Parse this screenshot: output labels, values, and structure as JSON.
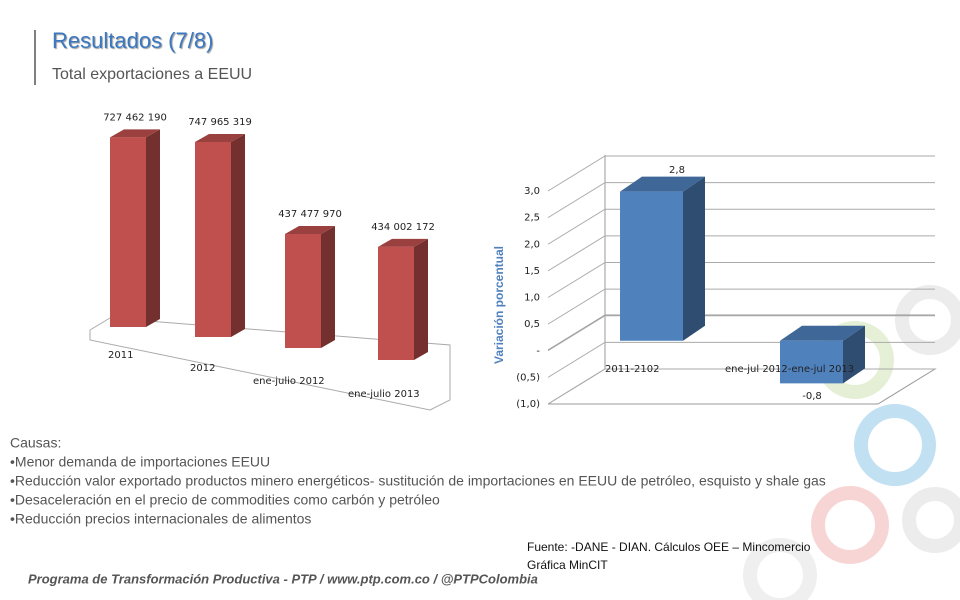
{
  "header": {
    "title": "Resultados (7/8)",
    "subtitle": "Total exportaciones a EEUU"
  },
  "chart_data": [
    {
      "type": "bar3d",
      "categories": [
        "2011",
        "2012",
        "ene-julio 2012",
        "ene-julio 2013"
      ],
      "values": [
        727462190,
        747965319,
        437477970,
        434002172
      ],
      "value_labels": [
        "727 462 190",
        "747 965 319",
        "437 477 970",
        "434 002 172"
      ],
      "color": "#c0504d"
    },
    {
      "type": "bar3d_axis",
      "y_label": "Variación porcentual",
      "categories": [
        "2011-2102",
        "ene-jul 2012-ene-jul 2013"
      ],
      "values": [
        2.8,
        -0.8
      ],
      "value_labels": [
        "2,8",
        "-0,8"
      ],
      "color": "#4f81bd",
      "ylim": [
        -1,
        3
      ],
      "yticks": [
        {
          "value": 3,
          "label": "3,0"
        },
        {
          "value": 2.5,
          "label": "2,5"
        },
        {
          "value": 2,
          "label": "2,0"
        },
        {
          "value": 1.5,
          "label": "1,5"
        },
        {
          "value": 1,
          "label": "1,0"
        },
        {
          "value": 0.5,
          "label": "0,5"
        },
        {
          "value": 0,
          "label": "-"
        },
        {
          "value": -0.5,
          "label": "(0,5)"
        },
        {
          "value": -1,
          "label": "(1,0)"
        }
      ],
      "grid": true
    }
  ],
  "causes": {
    "heading": "Causas:",
    "items": [
      "•Menor demanda de importaciones EEUU",
      "•Reducción valor exportado productos minero energéticos- sustitución de importaciones en EEUU de petróleo, esquisto y shale gas",
      "•Desaceleración en el precio de commodities como carbón y petróleo",
      "•Reducción precios internacionales de alimentos"
    ]
  },
  "source": [
    "Fuente: -DANE - DIAN. Cálculos OEE – Mincomercio",
    "Gráfica MinCIT"
  ],
  "footer": "Programa de Transformación Productiva - PTP / www.ptp.com.co / @PTPColombia"
}
